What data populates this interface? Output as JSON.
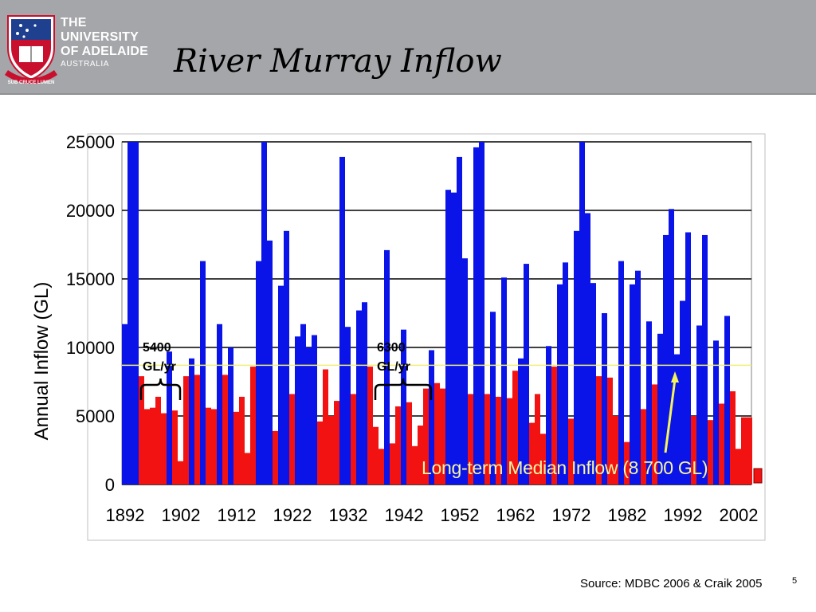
{
  "header": {
    "logo_line1": "THE UNIVERSITY",
    "logo_line2": "OF ADELAIDE",
    "logo_line3": "AUSTRALIA",
    "motto": "SUB CRUCE LUMEN",
    "title": "River Murray Inflow",
    "background_color": "#a4a6a9"
  },
  "footer": {
    "source": "Source: MDBC 2006 & Craik 2005",
    "page_number": "5"
  },
  "chart_data": {
    "type": "bar",
    "title": "",
    "ylabel": "Annual Inflow (GL)",
    "xlabel": "",
    "ylim": [
      0,
      25000
    ],
    "yticks": [
      0,
      5000,
      10000,
      15000,
      20000,
      25000
    ],
    "xticks": [
      "1892",
      "1902",
      "1912",
      "1922",
      "1932",
      "1942",
      "1952",
      "1962",
      "1972",
      "1982",
      "1992",
      "2002"
    ],
    "grid": true,
    "start_year": 1892,
    "colors": {
      "above_median": "#0a13e8",
      "below_median": "#f21212",
      "median_line": "#f0f07a",
      "arrow": "#f5f55a",
      "plot_bg": "#ffffff",
      "grid": "#000000"
    },
    "values": [
      11700,
      25200,
      25200,
      7900,
      5500,
      5600,
      6400,
      5200,
      9700,
      5400,
      1700,
      7900,
      9200,
      8000,
      16300,
      5600,
      5500,
      11700,
      8000,
      10000,
      5300,
      6400,
      2300,
      8600,
      16300,
      25200,
      17800,
      3900,
      14500,
      18500,
      6600,
      10800,
      11700,
      10000,
      10900,
      4600,
      8400,
      5000,
      6100,
      23900,
      11500,
      6600,
      12700,
      13300,
      8600,
      4200,
      2600,
      17100,
      3000,
      5700,
      11300,
      6000,
      2800,
      4300,
      7000,
      9800,
      7400,
      7000,
      21500,
      21300,
      23900,
      16500,
      6600,
      24600,
      25200,
      6600,
      12600,
      6400,
      15100,
      6300,
      8300,
      9200,
      16100,
      4500,
      6600,
      3700,
      10100,
      8600,
      14600,
      16200,
      4800,
      18500,
      25200,
      19800,
      14700,
      7900,
      12500,
      7800,
      5000,
      16300,
      3100,
      14600,
      15600,
      5500,
      11900,
      7300,
      11000,
      18200,
      20100,
      9500,
      13400,
      18400,
      5000,
      11600,
      18200,
      4700,
      10500,
      5900,
      12300,
      6800,
      2600,
      4900,
      4900
    ],
    "median": 8700,
    "median_label": "Long-term Median Inflow (8 700 GL)",
    "annotations": [
      {
        "text_line1": "5400",
        "text_line2": "GL/yr",
        "from_year": 1895,
        "to_year": 1902
      },
      {
        "text_line1": "6300",
        "text_line2": "GL/yr",
        "from_year": 1937,
        "to_year": 1947
      }
    ]
  }
}
